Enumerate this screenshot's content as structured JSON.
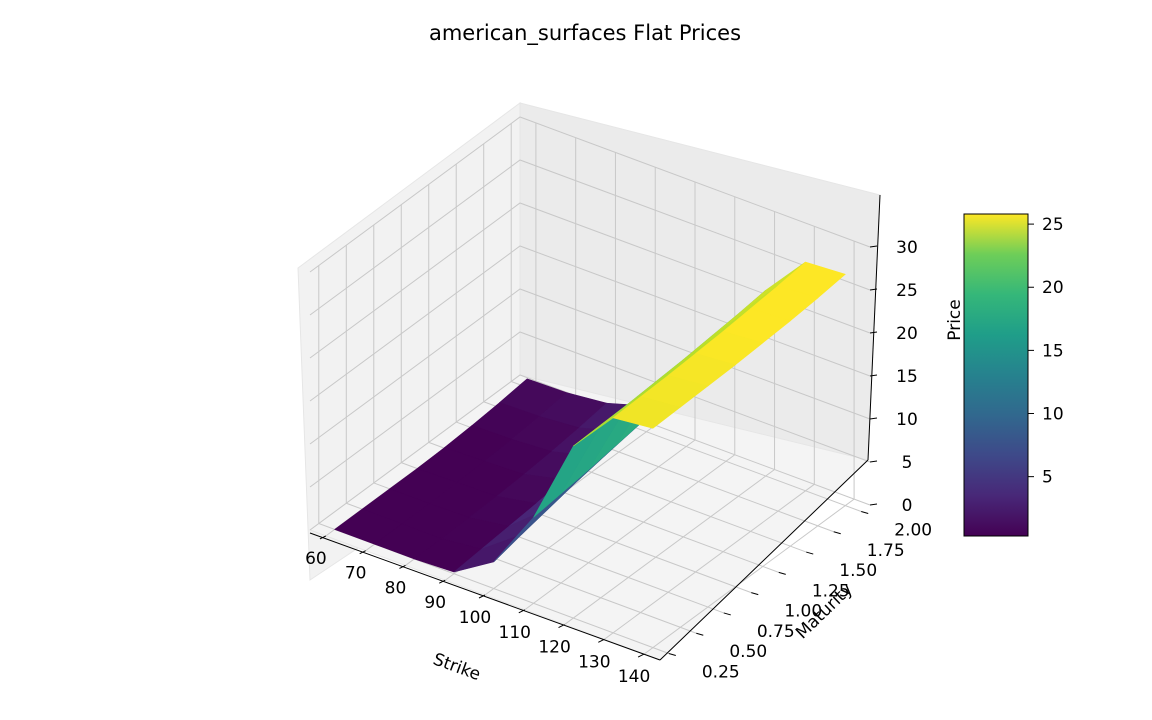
{
  "chart_data": {
    "type": "surface3d",
    "title": "american_surfaces Flat Prices",
    "xlabel": "Strike",
    "ylabel": "Maturity",
    "zlabel": "Price",
    "x_ticks": [
      "60",
      "70",
      "80",
      "90",
      "100",
      "110",
      "120",
      "130",
      "140"
    ],
    "y_ticks": [
      "0.25",
      "0.50",
      "0.75",
      "1.00",
      "1.25",
      "1.50",
      "1.75",
      "2.00"
    ],
    "z_ticks": [
      "0",
      "5",
      "10",
      "15",
      "20",
      "25",
      "30"
    ],
    "colorbar_ticks": [
      "5",
      "10",
      "15",
      "20",
      "25"
    ],
    "xlim": [
      56,
      144
    ],
    "ylim": [
      0.17,
      2.08
    ],
    "zlim": [
      0,
      30
    ],
    "colormap": "viridis",
    "strikes": [
      60,
      70,
      80,
      90,
      100,
      110,
      120,
      130,
      140
    ],
    "maturities": [
      0.25,
      0.5,
      0.75,
      1.0,
      1.25,
      1.5,
      1.75,
      2.0
    ],
    "prices": [
      [
        0.0,
        0.0,
        0.0,
        0.0,
        0.1,
        0.3,
        0.6,
        1.0
      ],
      [
        0.0,
        0.0,
        0.0,
        0.1,
        0.2,
        0.4,
        0.7,
        1.1
      ],
      [
        0.0,
        0.0,
        0.1,
        0.2,
        0.4,
        0.7,
        1.1,
        1.6
      ],
      [
        0.2,
        0.5,
        0.8,
        1.1,
        1.5,
        1.9,
        2.4,
        3.0
      ],
      [
        3.1,
        3.9,
        4.6,
        5.3,
        5.9,
        6.5,
        7.1,
        9.0
      ],
      [
        10.0,
        10.4,
        10.8,
        11.3,
        11.8,
        12.3,
        12.9,
        13.6
      ],
      [
        20.0,
        20.1,
        20.2,
        20.4,
        20.6,
        20.9,
        21.2,
        21.6
      ],
      [
        25.0,
        25.1,
        25.2,
        25.4,
        25.6,
        25.9,
        26.2,
        26.6
      ],
      [
        25.5,
        25.6,
        25.7,
        25.8,
        26.0,
        26.2,
        26.5,
        26.9
      ]
    ],
    "colorbar_range": [
      0.3,
      25.8
    ]
  }
}
